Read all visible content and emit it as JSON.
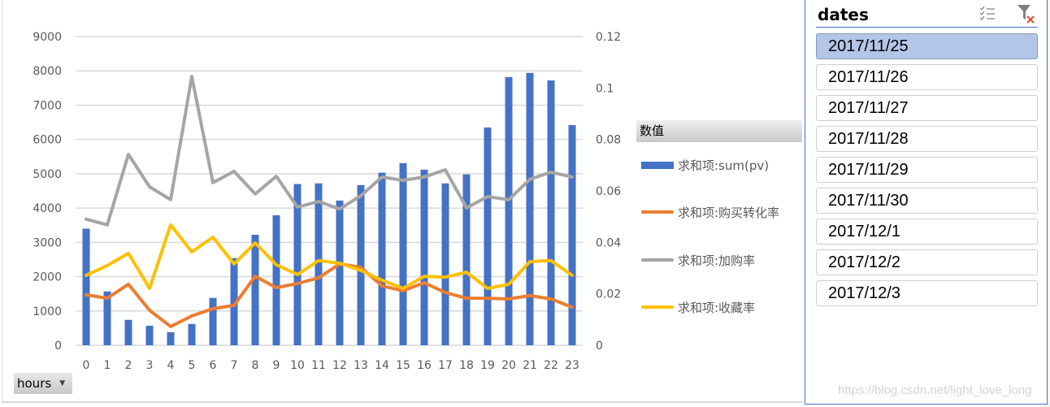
{
  "chart_data": {
    "type": "bar",
    "title": "",
    "xlabel": "hours",
    "ylabel": "",
    "categories": [
      "0",
      "1",
      "2",
      "3",
      "4",
      "5",
      "6",
      "7",
      "8",
      "9",
      "10",
      "11",
      "12",
      "13",
      "14",
      "15",
      "16",
      "17",
      "18",
      "19",
      "20",
      "21",
      "22",
      "23"
    ],
    "ylim": [
      0,
      9000
    ],
    "y_ticks": [
      "0",
      "1000",
      "2000",
      "3000",
      "4000",
      "5000",
      "6000",
      "7000",
      "8000",
      "9000"
    ],
    "y2lim": [
      0,
      0.12
    ],
    "y2_ticks": [
      "0",
      "0.02",
      "0.04",
      "0.06",
      "0.08",
      "0.1",
      "0.12"
    ],
    "grid": true,
    "legend_position": "right",
    "legend_title": "数值",
    "series": [
      {
        "name": "求和项:sum(pv)",
        "type": "bar",
        "axis": "left",
        "color": "#4472c4",
        "values": [
          3400,
          1570,
          740,
          570,
          380,
          620,
          1380,
          2540,
          3220,
          3790,
          4700,
          4720,
          4220,
          4670,
          5030,
          5310,
          5120,
          4720,
          4980,
          6350,
          7820,
          7940,
          7720,
          6420
        ]
      },
      {
        "name": "求和项:购买转化率",
        "type": "line",
        "axis": "right",
        "color": "#ed7d31",
        "values": [
          0.0196,
          0.0183,
          0.0237,
          0.0136,
          0.0073,
          0.0114,
          0.0142,
          0.0155,
          0.0268,
          0.0224,
          0.024,
          0.0262,
          0.0316,
          0.0303,
          0.0231,
          0.0212,
          0.0243,
          0.0205,
          0.0183,
          0.0183,
          0.018,
          0.0193,
          0.018,
          0.0148
        ]
      },
      {
        "name": "求和项:加购率",
        "type": "line",
        "axis": "right",
        "color": "#a5a5a5",
        "values": [
          0.049,
          0.0468,
          0.0742,
          0.0616,
          0.0566,
          0.1045,
          0.0632,
          0.0676,
          0.0588,
          0.0657,
          0.0537,
          0.0559,
          0.053,
          0.0581,
          0.0654,
          0.0641,
          0.0654,
          0.0682,
          0.0534,
          0.0578,
          0.0566,
          0.0645,
          0.0673,
          0.0654
        ]
      },
      {
        "name": "求和项:收藏率",
        "type": "line",
        "axis": "right",
        "color": "#ffc000",
        "values": [
          0.0272,
          0.031,
          0.0357,
          0.0221,
          0.0468,
          0.0363,
          0.042,
          0.0316,
          0.0398,
          0.0313,
          0.0275,
          0.0329,
          0.0319,
          0.0291,
          0.0253,
          0.0221,
          0.0268,
          0.0265,
          0.0284,
          0.0221,
          0.0237,
          0.0325,
          0.0329,
          0.0272
        ]
      }
    ]
  },
  "legend": {
    "title": "数值",
    "items": [
      {
        "label": "求和项:sum(pv)",
        "color": "#4472c4",
        "kind": "bar"
      },
      {
        "label": "求和项:购买转化率",
        "color": "#ed7d31",
        "kind": "line"
      },
      {
        "label": "求和项:加购率",
        "color": "#a5a5a5",
        "kind": "line"
      },
      {
        "label": "求和项:收藏率",
        "color": "#ffc000",
        "kind": "line"
      }
    ]
  },
  "field_button": {
    "label": "hours",
    "icon": "dropdown-caret-icon"
  },
  "slicer": {
    "title": "dates",
    "icons": [
      "multi-select-icon",
      "clear-filter-icon"
    ],
    "items": [
      {
        "label": "2017/11/25",
        "selected": true
      },
      {
        "label": "2017/11/26",
        "selected": false
      },
      {
        "label": "2017/11/27",
        "selected": false
      },
      {
        "label": "2017/11/28",
        "selected": false
      },
      {
        "label": "2017/11/29",
        "selected": false
      },
      {
        "label": "2017/11/30",
        "selected": false
      },
      {
        "label": "2017/12/1",
        "selected": false
      },
      {
        "label": "2017/12/2",
        "selected": false
      },
      {
        "label": "2017/12/3",
        "selected": false
      }
    ]
  },
  "watermark": "https://blog.csdn.net/light_love_long"
}
